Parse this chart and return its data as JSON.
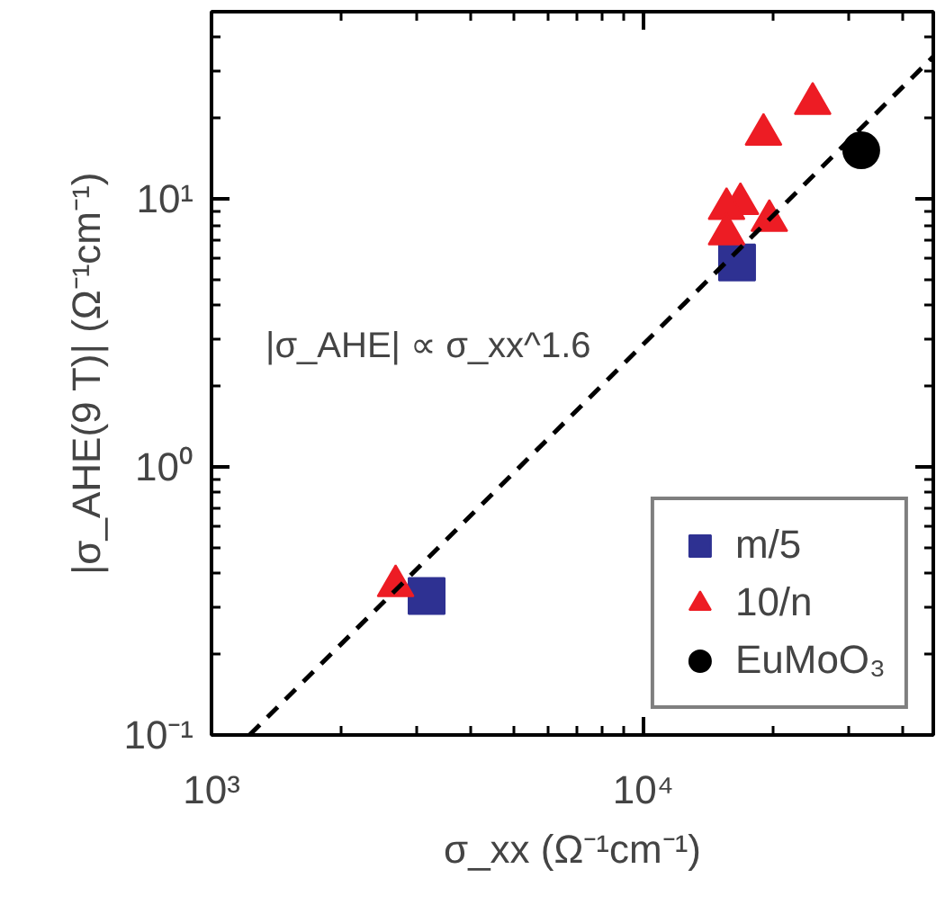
{
  "chart_data": {
    "type": "scatter",
    "xlabel": "σ_xx (Ω⁻¹cm⁻¹)",
    "ylabel": "|σ_AHE(9 T)| (Ω⁻¹cm⁻¹)",
    "log": "xy",
    "grid": false,
    "legend": "bottom right",
    "xlim": [
      1000,
      47000
    ],
    "ylim": [
      0.1,
      50
    ],
    "xticks": [
      {
        "value": 1000,
        "label": "10³"
      },
      {
        "value": 10000,
        "label": "10⁴"
      }
    ],
    "yticks": [
      {
        "value": 0.1,
        "label": "10⁻¹"
      },
      {
        "value": 1,
        "label": "10⁰"
      },
      {
        "value": 10,
        "label": "10¹"
      }
    ],
    "annotations": [
      "|σ_AHE| ∝ σ_xx^1.6"
    ],
    "series": [
      {
        "name": "m/5",
        "color": "#2e3192",
        "marker": "square",
        "x": [
          3150,
          16500
        ],
        "values": [
          0.33,
          5.8
        ]
      },
      {
        "name": "10/n",
        "color": "#ed1c24",
        "marker": "triangle",
        "x": [
          2670,
          24700,
          19000,
          16800,
          15600,
          15600,
          19600
        ],
        "values": [
          0.36,
          22.7,
          17.4,
          9.6,
          9.2,
          7.4,
          8.3
        ]
      },
      {
        "name": "EuMoO₃",
        "color": "#000000",
        "marker": "circle",
        "x": [
          32000
        ],
        "values": [
          15.2
        ]
      },
      {
        "type": "line",
        "color": "#000000",
        "line_style": "dashed",
        "x": [
          1225,
          47000
        ],
        "values": [
          0.1,
          34
        ]
      }
    ]
  }
}
